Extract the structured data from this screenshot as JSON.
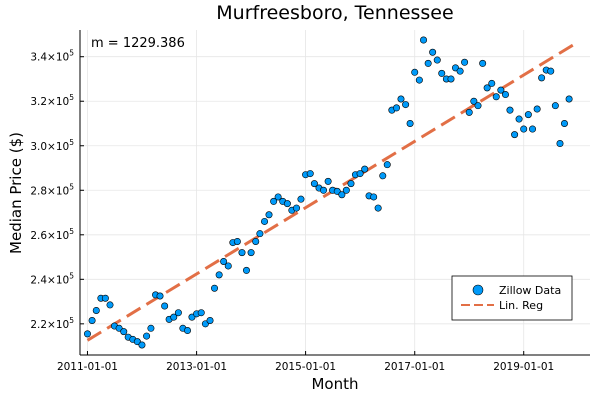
{
  "chart_data": {
    "type": "scatter",
    "title": "Murfreesboro, Tennessee",
    "xlabel": "Month",
    "ylabel": "Median Price ($)",
    "annotation": "m = 1229.386",
    "xlim": [
      "2010-11-12",
      "2020-03-20"
    ],
    "ylim": [
      206000,
      352000
    ],
    "x_ticks": [
      "2011-01-01",
      "2013-01-01",
      "2015-01-01",
      "2017-01-01",
      "2019-01-01"
    ],
    "y_ticks": [
      {
        "value": 220000,
        "mantissa": "2.2",
        "exp": "5"
      },
      {
        "value": 240000,
        "mantissa": "2.4",
        "exp": "5"
      },
      {
        "value": 260000,
        "mantissa": "2.6",
        "exp": "5"
      },
      {
        "value": 280000,
        "mantissa": "2.8",
        "exp": "5"
      },
      {
        "value": 300000,
        "mantissa": "3.0",
        "exp": "5"
      },
      {
        "value": 320000,
        "mantissa": "3.2",
        "exp": "5"
      },
      {
        "value": 340000,
        "mantissa": "3.4",
        "exp": "5"
      }
    ],
    "grid": true,
    "legend_position": "bottom-right",
    "colors": {
      "scatter": "#009af9",
      "line": "#e26f46",
      "grid": "#e6e6e6"
    },
    "series": [
      {
        "name": "Zillow Data",
        "type": "scatter",
        "x": [
          "2011-01-01",
          "2011-02-01",
          "2011-03-01",
          "2011-04-01",
          "2011-05-01",
          "2011-06-01",
          "2011-07-01",
          "2011-08-01",
          "2011-09-01",
          "2011-10-01",
          "2011-11-01",
          "2011-12-01",
          "2012-01-01",
          "2012-02-01",
          "2012-03-01",
          "2012-04-01",
          "2012-05-01",
          "2012-06-01",
          "2012-07-01",
          "2012-08-01",
          "2012-09-01",
          "2012-10-01",
          "2012-11-01",
          "2012-12-01",
          "2013-01-01",
          "2013-02-01",
          "2013-03-01",
          "2013-04-01",
          "2013-05-01",
          "2013-06-01",
          "2013-07-01",
          "2013-08-01",
          "2013-09-01",
          "2013-10-01",
          "2013-11-01",
          "2013-12-01",
          "2014-01-01",
          "2014-02-01",
          "2014-03-01",
          "2014-04-01",
          "2014-05-01",
          "2014-06-01",
          "2014-07-01",
          "2014-08-01",
          "2014-09-01",
          "2014-10-01",
          "2014-11-01",
          "2014-12-01",
          "2015-01-01",
          "2015-02-01",
          "2015-03-01",
          "2015-04-01",
          "2015-05-01",
          "2015-06-01",
          "2015-07-01",
          "2015-08-01",
          "2015-09-01",
          "2015-10-01",
          "2015-11-01",
          "2015-12-01",
          "2016-01-01",
          "2016-02-01",
          "2016-03-01",
          "2016-04-01",
          "2016-05-01",
          "2016-06-01",
          "2016-07-01",
          "2016-08-01",
          "2016-09-01",
          "2016-10-01",
          "2016-11-01",
          "2016-12-01",
          "2017-01-01",
          "2017-02-01",
          "2017-03-01",
          "2017-04-01",
          "2017-05-01",
          "2017-06-01",
          "2017-07-01",
          "2017-08-01",
          "2017-09-01",
          "2017-10-01",
          "2017-11-01",
          "2017-12-01",
          "2018-01-01",
          "2018-02-01",
          "2018-03-01",
          "2018-04-01",
          "2018-05-01",
          "2018-06-01",
          "2018-07-01",
          "2018-08-01",
          "2018-09-01",
          "2018-10-01",
          "2018-11-01",
          "2018-12-01",
          "2019-01-01",
          "2019-02-01",
          "2019-03-01",
          "2019-04-01",
          "2019-05-01",
          "2019-06-01",
          "2019-07-01",
          "2019-08-01",
          "2019-09-01",
          "2019-10-01",
          "2019-11-01"
        ],
        "y": [
          215500,
          221500,
          226000,
          231500,
          231500,
          228500,
          219000,
          218000,
          216500,
          214000,
          213000,
          212000,
          210500,
          214500,
          218000,
          233000,
          232500,
          228000,
          222000,
          223000,
          225000,
          218000,
          217000,
          223000,
          224500,
          225000,
          220000,
          221500,
          236000,
          242000,
          248000,
          246000,
          256500,
          257000,
          252000,
          244000,
          252000,
          257000,
          260500,
          266000,
          269000,
          275000,
          277000,
          275000,
          274000,
          271000,
          272000,
          276000,
          287000,
          287500,
          283000,
          281000,
          280000,
          284000,
          280000,
          279500,
          278000,
          280000,
          283000,
          287000,
          287500,
          289500,
          277500,
          277000,
          272000,
          286500,
          291500,
          316000,
          317000,
          321000,
          318500,
          310000,
          333000,
          329500,
          347500,
          337000,
          342000,
          338500,
          332500,
          330000,
          330000,
          335000,
          333500,
          337500,
          315000,
          320000,
          318000,
          337000,
          326000,
          328000,
          322000,
          325000,
          323000,
          316000,
          305000,
          312000,
          307500,
          314000,
          307500,
          316500,
          330500,
          334000,
          333500,
          318000,
          301000,
          310000,
          321000
        ]
      },
      {
        "name": "Lin. Reg",
        "type": "line",
        "x": [
          "2011-01-01",
          "2019-12-01"
        ],
        "y": [
          212600,
          345400
        ]
      }
    ],
    "marker": {
      "size": 3.2,
      "stroke": "#000000"
    }
  }
}
